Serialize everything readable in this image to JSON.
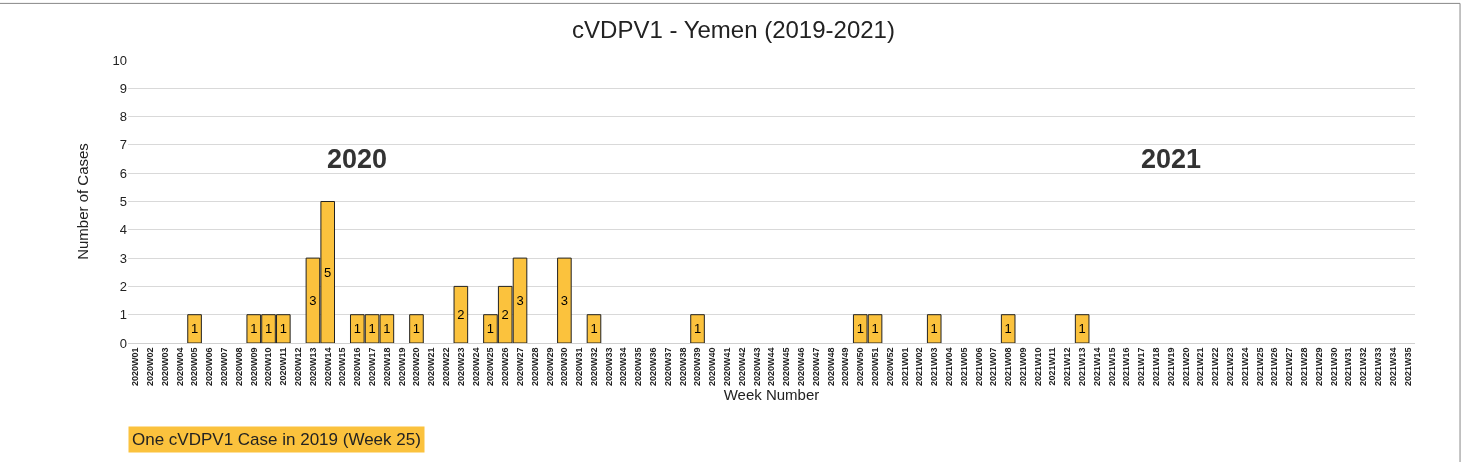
{
  "chart_data": {
    "type": "bar",
    "title": "cVDPV1 - Yemen (2019-2021)",
    "xlabel": "Week Number",
    "ylabel": "Number of Cases",
    "categories": [
      "2020W01",
      "2020W02",
      "2020W03",
      "2020W04",
      "2020W05",
      "2020W06",
      "2020W07",
      "2020W08",
      "2020W09",
      "2020W10",
      "2020W11",
      "2020W12",
      "2020W13",
      "2020W14",
      "2020W15",
      "2020W16",
      "2020W17",
      "2020W18",
      "2020W19",
      "2020W20",
      "2020W21",
      "2020W22",
      "2020W23",
      "2020W24",
      "2020W25",
      "2020W26",
      "2020W27",
      "2020W28",
      "2020W29",
      "2020W30",
      "2020W31",
      "2020W32",
      "2020W33",
      "2020W34",
      "2020W35",
      "2020W36",
      "2020W37",
      "2020W38",
      "2020W39",
      "2020W40",
      "2020W41",
      "2020W42",
      "2020W43",
      "2020W44",
      "2020W45",
      "2020W46",
      "2020W47",
      "2020W48",
      "2020W49",
      "2020W50",
      "2020W51",
      "2020W52",
      "2021W01",
      "2021W02",
      "2021W03",
      "2021W04",
      "2021W05",
      "2021W06",
      "2021W07",
      "2021W08",
      "2021W09",
      "2021W10",
      "2021W11",
      "2021W12",
      "2021W13",
      "2021W14",
      "2021W15",
      "2021W16",
      "2021W17",
      "2021W18",
      "2021W19",
      "2021W20",
      "2021W21",
      "2021W22",
      "2021W23",
      "2021W24",
      "2021W25",
      "2021W26",
      "2021W27",
      "2021W28",
      "2021W29",
      "2021W30",
      "2021W31",
      "2021W32",
      "2021W33",
      "2021W34",
      "2021W35"
    ],
    "values": [
      0,
      0,
      0,
      0,
      1,
      0,
      0,
      0,
      1,
      1,
      1,
      0,
      3,
      5,
      0,
      1,
      1,
      1,
      0,
      1,
      0,
      0,
      2,
      0,
      1,
      2,
      3,
      0,
      0,
      3,
      0,
      1,
      0,
      0,
      0,
      0,
      0,
      0,
      1,
      0,
      0,
      0,
      0,
      0,
      0,
      0,
      0,
      0,
      0,
      1,
      1,
      0,
      0,
      0,
      1,
      0,
      0,
      0,
      0,
      1,
      0,
      0,
      0,
      0,
      1,
      0,
      0,
      0,
      0,
      0,
      0,
      0,
      0,
      0,
      0,
      0,
      0,
      0,
      0,
      0,
      0,
      0,
      0,
      0,
      0,
      0,
      0
    ],
    "value_labels": [
      null,
      null,
      null,
      null,
      "1",
      null,
      null,
      null,
      "1",
      "1",
      "1",
      null,
      "3",
      "5",
      null,
      "1",
      "1",
      "1",
      null,
      "1",
      null,
      null,
      "2",
      null,
      "1",
      "2",
      "3",
      null,
      null,
      "3",
      null,
      "1",
      null,
      null,
      null,
      null,
      null,
      null,
      "1",
      null,
      null,
      null,
      null,
      null,
      null,
      null,
      null,
      null,
      null,
      "1",
      "1",
      null,
      null,
      null,
      "1",
      null,
      null,
      null,
      null,
      "1",
      null,
      null,
      null,
      null,
      "1",
      null,
      null,
      null,
      null,
      null,
      null,
      null,
      null,
      null,
      null,
      null,
      null,
      null,
      null,
      null,
      null,
      null,
      null,
      null,
      null,
      null,
      null
    ],
    "color": "#fbc23d",
    "ylim": [
      0,
      10
    ],
    "yticks": [
      0,
      1,
      2,
      3,
      4,
      5,
      6,
      7,
      8,
      9,
      10
    ],
    "grid": "y",
    "annotations": [
      "2020",
      "2021",
      "One cVDPV1 Case in 2019 (Week 25)"
    ]
  }
}
